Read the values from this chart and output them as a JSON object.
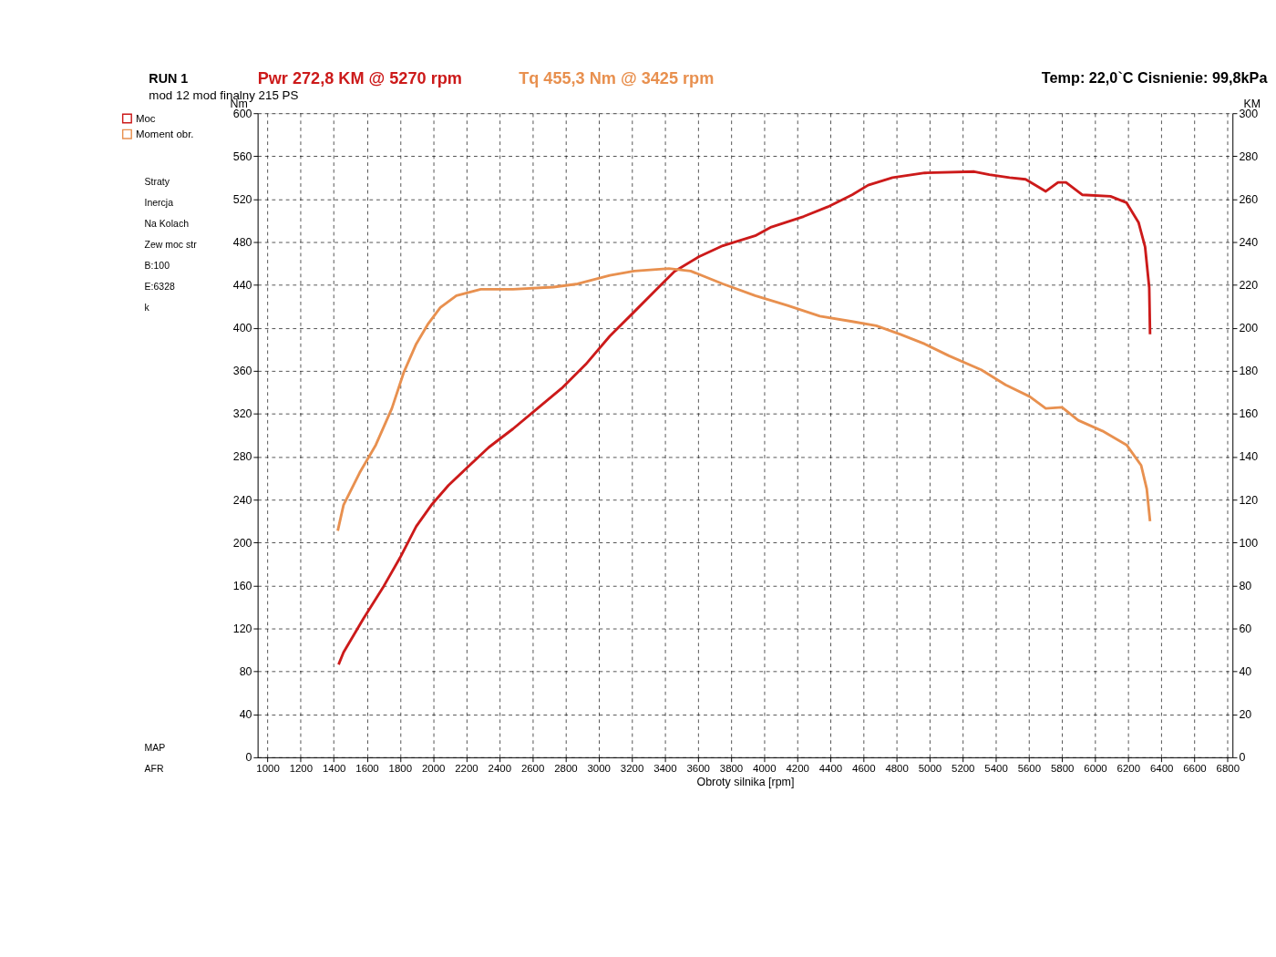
{
  "chart_data": {
    "type": "line",
    "title": "RUN 1",
    "subtitle": "mod 12 mod finalny 215 PS",
    "xlabel": "Obroty silnika [rpm]",
    "ylabel": "Nm",
    "y2label": "KM",
    "xlim": [
      940,
      6830
    ],
    "xticks": [
      1000,
      1200,
      1400,
      1600,
      1800,
      2000,
      2200,
      2400,
      2600,
      2800,
      3000,
      3200,
      3400,
      3600,
      3800,
      4000,
      4200,
      4400,
      4600,
      4800,
      5000,
      5200,
      5400,
      5600,
      5800,
      6000,
      6200,
      6400,
      6600,
      6800
    ],
    "ylim": [
      0,
      600
    ],
    "yticks": [
      0,
      40,
      80,
      120,
      160,
      200,
      240,
      280,
      320,
      360,
      400,
      440,
      480,
      520,
      560,
      600
    ],
    "y2lim": [
      0,
      300
    ],
    "y2ticks": [
      0,
      20,
      40,
      60,
      80,
      100,
      120,
      140,
      160,
      180,
      200,
      220,
      240,
      260,
      280,
      300
    ],
    "grid": true,
    "legend": "left",
    "line_style": "solid",
    "marker": "none",
    "annotations": [
      "Pwr  272,8 KM @ 5270 rpm",
      "Tq 455,3 Nm @ 3425 rpm",
      "Temp: 22,0`C   Cisnienie: 99,8kPa",
      "Straty",
      "Inercja",
      "Na Kolach",
      "Zew moc str",
      "B:100",
      "E:6328",
      "k",
      "MAP",
      "AFR"
    ],
    "series": [
      {
        "name": "Moc",
        "color": "#cc1a1a",
        "axis": "y2",
        "x": [
          1429,
          1459,
          1580,
          1702,
          1800,
          1898,
          1995,
          2093,
          2190,
          2337,
          2483,
          2629,
          2776,
          2922,
          3068,
          3215,
          3361,
          3459,
          3605,
          3751,
          3946,
          4044,
          4239,
          4385,
          4532,
          4629,
          4776,
          4971,
          5270,
          5361,
          5483,
          5580,
          5654,
          5702,
          5776,
          5824,
          5922,
          6093,
          6190,
          6263,
          6302,
          6327,
          6332
        ],
        "values": [
          43.2,
          48.9,
          64.7,
          79.7,
          92.9,
          107.5,
          118,
          126.7,
          133.8,
          144.4,
          153,
          162.4,
          171.8,
          183,
          196.2,
          207.5,
          218.8,
          226.3,
          233.1,
          238.3,
          242.9,
          247,
          251.9,
          256.4,
          262,
          266.5,
          270,
          272.2,
          272.8,
          271.4,
          270,
          269.2,
          265.8,
          263.6,
          267.8,
          267.8,
          262,
          261.3,
          258.3,
          249,
          237.7,
          218.8,
          197
        ]
      },
      {
        "name": "Moment obr.",
        "color": "#e8904f",
        "x": [
          1424,
          1459,
          1556,
          1654,
          1751,
          1824,
          1898,
          1971,
          2044,
          2141,
          2288,
          2483,
          2727,
          2873,
          3068,
          3215,
          3425,
          3556,
          3751,
          3946,
          4141,
          4337,
          4532,
          4678,
          4824,
          4971,
          5117,
          5312,
          5459,
          5605,
          5702,
          5800,
          5898,
          6044,
          6190,
          6278,
          6312,
          6332
        ],
        "values": [
          211,
          235,
          265,
          291,
          325,
          359,
          385,
          404,
          419,
          430,
          436,
          436,
          438,
          441,
          449,
          453,
          455.3,
          453,
          441,
          430,
          421,
          411,
          406,
          402,
          394,
          385,
          374,
          361,
          347,
          336,
          325,
          326,
          314,
          304,
          291,
          272,
          250,
          220
        ]
      }
    ]
  }
}
